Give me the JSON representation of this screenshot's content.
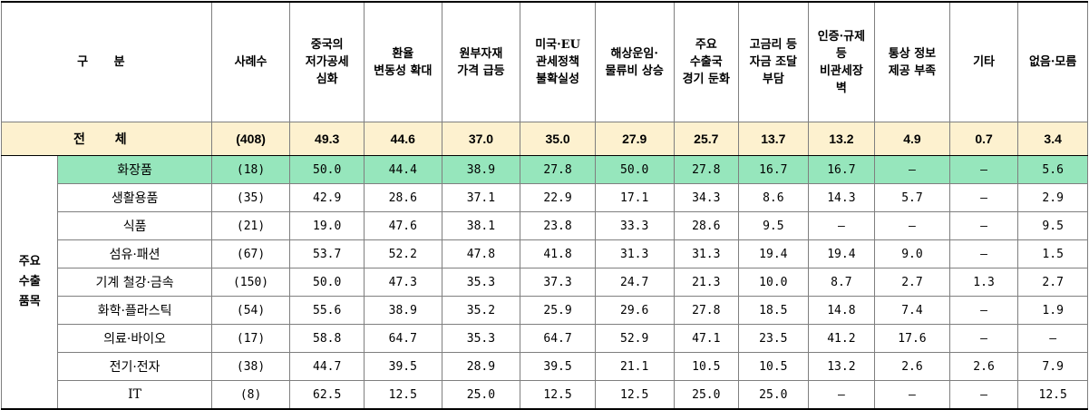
{
  "table": {
    "header": {
      "gubun": "구 분",
      "cases": "사례수",
      "columns": [
        "중국의\n저가공세\n심화",
        "환율\n변동성 확대",
        "원부자재\n가격 급등",
        "미국·EU\n관세정책\n불확실성",
        "해상운임·\n물류비 상승",
        "주요\n수출국\n경기 둔화",
        "고금리 등\n자금 조달\n부담",
        "인증·규제\n등\n비관세장\n벽",
        "통상 정보\n제공 부족",
        "기타",
        "없음·모름"
      ]
    },
    "total": {
      "label": "전 체",
      "cases": "(408)",
      "values": [
        "49.3",
        "44.6",
        "37.0",
        "35.0",
        "27.9",
        "25.7",
        "13.7",
        "13.2",
        "4.9",
        "0.7",
        "3.4"
      ]
    },
    "group_label": "주요\n수출\n품목",
    "rows": [
      {
        "name": "화장품",
        "cases": "(18)",
        "values": [
          "50.0",
          "44.4",
          "38.9",
          "27.8",
          "50.0",
          "27.8",
          "16.7",
          "16.7",
          "–",
          "–",
          "5.6"
        ]
      },
      {
        "name": "생활용품",
        "cases": "(35)",
        "values": [
          "42.9",
          "28.6",
          "37.1",
          "22.9",
          "17.1",
          "34.3",
          "8.6",
          "14.3",
          "5.7",
          "–",
          "2.9"
        ]
      },
      {
        "name": "식품",
        "cases": "(21)",
        "values": [
          "19.0",
          "47.6",
          "38.1",
          "23.8",
          "33.3",
          "28.6",
          "9.5",
          "–",
          "–",
          "–",
          "9.5"
        ]
      },
      {
        "name": "섬유·패션",
        "cases": "(67)",
        "values": [
          "53.7",
          "52.2",
          "47.8",
          "41.8",
          "31.3",
          "31.3",
          "19.4",
          "19.4",
          "9.0",
          "–",
          "1.5"
        ]
      },
      {
        "name": "기계 철강·금속",
        "cases": "(150)",
        "values": [
          "50.0",
          "47.3",
          "35.3",
          "37.3",
          "24.7",
          "21.3",
          "10.0",
          "8.7",
          "2.7",
          "1.3",
          "2.7"
        ]
      },
      {
        "name": "화학·플라스틱",
        "cases": "(54)",
        "values": [
          "55.6",
          "38.9",
          "35.2",
          "25.9",
          "29.6",
          "27.8",
          "18.5",
          "14.8",
          "7.4",
          "–",
          "1.9"
        ]
      },
      {
        "name": "의료·바이오",
        "cases": "(17)",
        "values": [
          "58.8",
          "64.7",
          "35.3",
          "64.7",
          "52.9",
          "47.1",
          "23.5",
          "41.2",
          "17.6",
          "–",
          "–"
        ]
      },
      {
        "name": "전기·전자",
        "cases": "(38)",
        "values": [
          "44.7",
          "39.5",
          "28.9",
          "39.5",
          "21.1",
          "10.5",
          "10.5",
          "13.2",
          "2.6",
          "2.6",
          "7.9"
        ]
      },
      {
        "name": "IT",
        "cases": "(8)",
        "values": [
          "62.5",
          "12.5",
          "25.0",
          "12.5",
          "12.5",
          "25.0",
          "25.0",
          "–",
          "–",
          "–",
          "12.5"
        ]
      }
    ],
    "highlight_color": "#96e6bc",
    "total_row_color": "#fdf1cf"
  }
}
